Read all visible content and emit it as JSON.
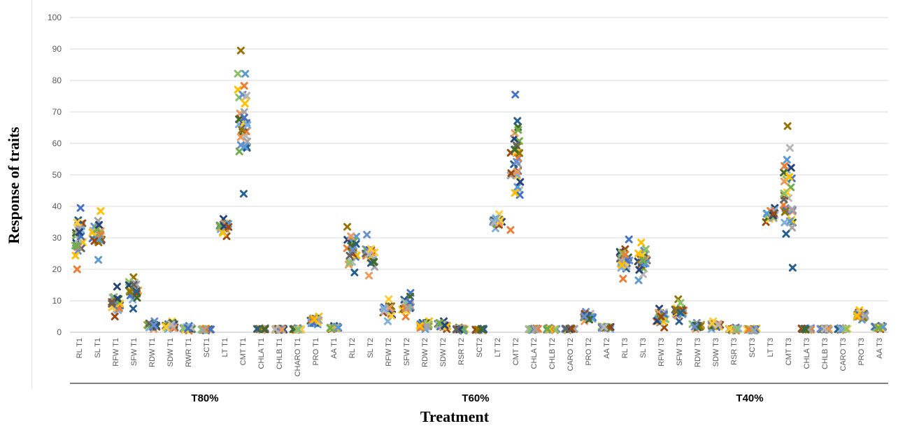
{
  "chart_data": {
    "type": "scatter",
    "ylabel": "Response of traits",
    "xlabel": "Treatment",
    "ylim": [
      0,
      100
    ],
    "yticks": [
      0,
      10,
      20,
      30,
      40,
      50,
      60,
      70,
      80,
      90,
      100
    ],
    "grid": true,
    "legend": "none",
    "marker": "x",
    "groups": [
      "T80%",
      "T60%",
      "T40%"
    ],
    "categories": [
      {
        "label": "RL T1",
        "group": 0,
        "min": 20,
        "max": 39.5
      },
      {
        "label": "SL T1",
        "group": 0,
        "min": 23,
        "max": 38.5
      },
      {
        "label": "RFW T1",
        "group": 0,
        "min": 5,
        "max": 14.5
      },
      {
        "label": "SFW T1",
        "group": 0,
        "min": 7.5,
        "max": 17.5
      },
      {
        "label": "RDW T1",
        "group": 0,
        "min": 1,
        "max": 3.5
      },
      {
        "label": "SDW T1",
        "group": 0,
        "min": 1,
        "max": 3.5
      },
      {
        "label": "RWR T1",
        "group": 0,
        "min": 0.5,
        "max": 2
      },
      {
        "label": "SCT1",
        "group": 0,
        "min": 0.5,
        "max": 1.2
      },
      {
        "label": "LT T1",
        "group": 0,
        "min": 30.5,
        "max": 36
      },
      {
        "label": "CMT T1",
        "group": 0,
        "min": 44,
        "max": 89.5
      },
      {
        "label": "CHLA T1",
        "group": 0,
        "min": 0.7,
        "max": 1.3
      },
      {
        "label": "CHLB T1",
        "group": 0,
        "min": 0.7,
        "max": 1.3
      },
      {
        "label": "CHARO T1",
        "group": 0,
        "min": 0.7,
        "max": 1.3
      },
      {
        "label": "PRO T1",
        "group": 0,
        "min": 2.5,
        "max": 5
      },
      {
        "label": "AA T1",
        "group": 0,
        "min": 1,
        "max": 2
      },
      {
        "label": "RL T2",
        "group": 1,
        "min": 19,
        "max": 33.5
      },
      {
        "label": "SL T2",
        "group": 1,
        "min": 18,
        "max": 31
      },
      {
        "label": "RFW T2",
        "group": 1,
        "min": 3.5,
        "max": 10.5
      },
      {
        "label": "SFW T2",
        "group": 1,
        "min": 5,
        "max": 12.5
      },
      {
        "label": "RDW T2",
        "group": 1,
        "min": 1,
        "max": 3.5
      },
      {
        "label": "SDW T2",
        "group": 1,
        "min": 1,
        "max": 3.5
      },
      {
        "label": "RSR T2",
        "group": 1,
        "min": 0.5,
        "max": 1.5
      },
      {
        "label": "SCT2",
        "group": 1,
        "min": 0.5,
        "max": 1.2
      },
      {
        "label": "LT T2",
        "group": 1,
        "min": 33,
        "max": 37.5
      },
      {
        "label": "CMT T2",
        "group": 1,
        "min": 32.5,
        "max": 75.5
      },
      {
        "label": "CHLA T2",
        "group": 1,
        "min": 0.7,
        "max": 1.3
      },
      {
        "label": "CHLB T2",
        "group": 1,
        "min": 0.7,
        "max": 1.3
      },
      {
        "label": "CARO T2",
        "group": 1,
        "min": 0.7,
        "max": 1.3
      },
      {
        "label": "PRO T2",
        "group": 1,
        "min": 3.5,
        "max": 6.5
      },
      {
        "label": "AA T2",
        "group": 1,
        "min": 1,
        "max": 2
      },
      {
        "label": "RL T3",
        "group": 2,
        "min": 17,
        "max": 29.5
      },
      {
        "label": "SL T3",
        "group": 2,
        "min": 16.5,
        "max": 28.5
      },
      {
        "label": "RFW T3",
        "group": 2,
        "min": 1.5,
        "max": 7.5
      },
      {
        "label": "SFW T3",
        "group": 2,
        "min": 3.5,
        "max": 10.5
      },
      {
        "label": "RDW T3",
        "group": 2,
        "min": 1,
        "max": 3
      },
      {
        "label": "SDW T3",
        "group": 2,
        "min": 1,
        "max": 3.5
      },
      {
        "label": "RSR T3",
        "group": 2,
        "min": 0.5,
        "max": 1.5
      },
      {
        "label": "SCT3",
        "group": 2,
        "min": 0.5,
        "max": 1.2
      },
      {
        "label": "LT T3",
        "group": 2,
        "min": 35,
        "max": 39.5
      },
      {
        "label": "CMT T3",
        "group": 2,
        "min": 20.5,
        "max": 65.5
      },
      {
        "label": "CHLA T3",
        "group": 2,
        "min": 0.7,
        "max": 1.3
      },
      {
        "label": "CHLB T3",
        "group": 2,
        "min": 0.7,
        "max": 1.3
      },
      {
        "label": "CARO T3",
        "group": 2,
        "min": 0.7,
        "max": 1.3
      },
      {
        "label": "PRO T3",
        "group": 2,
        "min": 4,
        "max": 7
      },
      {
        "label": "AA T3",
        "group": 2,
        "min": 1,
        "max": 2
      }
    ],
    "marker_colors": [
      "#4472C4",
      "#ED7D31",
      "#A5A5A5",
      "#FFC000",
      "#5B9BD5",
      "#70AD47",
      "#264478",
      "#9E480E",
      "#636363",
      "#997300",
      "#255E91",
      "#43682B",
      "#698ED0",
      "#F1975A",
      "#B7B7B7",
      "#FFCD33",
      "#7CAFDD",
      "#8CC168"
    ]
  }
}
